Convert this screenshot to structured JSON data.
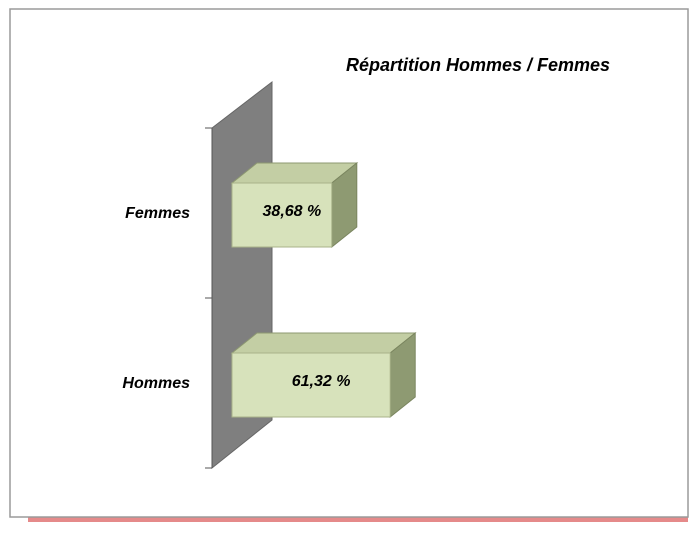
{
  "chart_data": {
    "type": "bar3d_horizontal",
    "title": "Répartition Hommes / Femmes",
    "categories": [
      "Hommes",
      "Femmes"
    ],
    "values": [
      61.32,
      38.68
    ],
    "value_labels": [
      "61,32 %",
      "38,68 %"
    ],
    "xlim": [
      0,
      100
    ],
    "color": "#d7e2bb"
  }
}
